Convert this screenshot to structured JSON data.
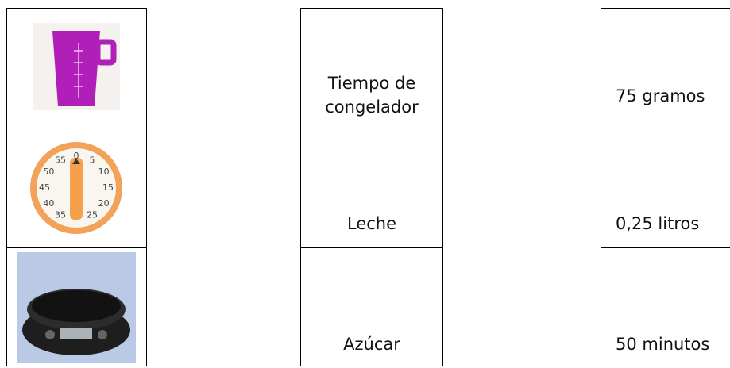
{
  "images": [
    {
      "kind": "measuring-cup"
    },
    {
      "kind": "kitchen-timer",
      "dial_labels": [
        "55",
        "0",
        "5",
        "10",
        "15",
        "20",
        "25",
        "35",
        "40",
        "45",
        "50"
      ]
    },
    {
      "kind": "kitchen-scale"
    }
  ],
  "items": [
    "Tiempo de congelador",
    "Leche",
    "Azúcar"
  ],
  "amounts": [
    "75 gramos",
    "0,25 litros",
    "50 minutos"
  ]
}
